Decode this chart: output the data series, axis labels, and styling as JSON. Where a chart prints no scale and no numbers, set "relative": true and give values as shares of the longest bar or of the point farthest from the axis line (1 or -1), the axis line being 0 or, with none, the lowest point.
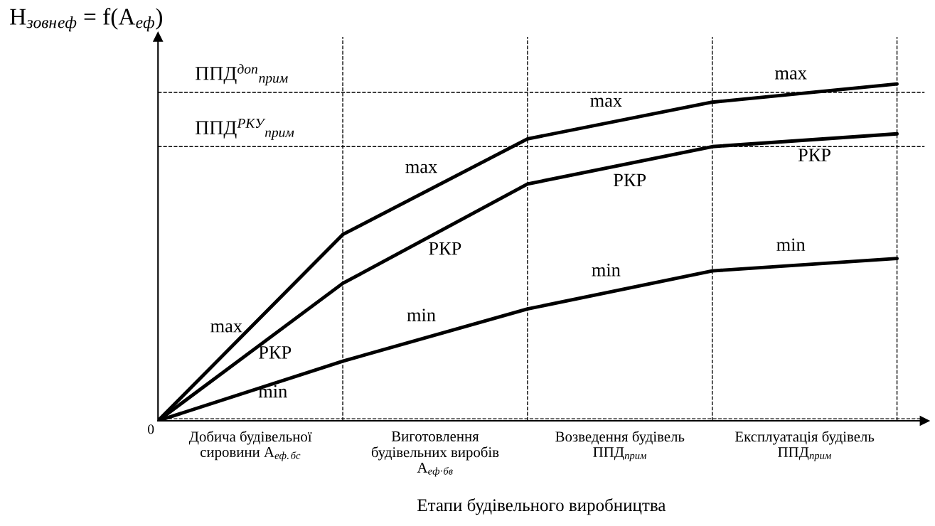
{
  "chart_data": {
    "type": "line",
    "relative": true,
    "ylabel": "H$_{зовн}$$_{еф}$ = f(A$_{еф}$)",
    "xlabel": "Етапи будівельного виробництва",
    "categories": [
      null,
      null,
      null,
      null,
      null
    ],
    "series": [
      {
        "name": "max",
        "color": "#000000",
        "values": [
          0,
          0.553,
          0.837,
          0.946,
          1.0
        ]
      },
      {
        "name": "РКР",
        "color": "#000000",
        "values": [
          0,
          0.408,
          0.703,
          0.814,
          0.852
        ]
      },
      {
        "name": "min",
        "color": "#000000",
        "values": [
          0,
          0.177,
          0.332,
          0.445,
          0.482
        ]
      }
    ],
    "ref_lines": [
      {
        "axis": "y",
        "value": 0.975,
        "label": "ППД$^{доп}$$_{прим}$",
        "line_style": "dashed"
      },
      {
        "axis": "y",
        "value": 0.814,
        "label": "ППД$^{РКУ}$$_{прим}$",
        "line_style": "dashed"
      },
      {
        "axis": "y",
        "value": 0.006,
        "label": null,
        "line_style": "dashed"
      }
    ],
    "annotations": [
      "0",
      "Добича будівельної\nсировини A$_{еф.бс}$",
      "Виготовлення\nбудівельних виробів\nA$_{еф·бв}$",
      "Возведення будівель\nППД$_{прим}$",
      "Експлуатація будівель\nППД$_{прим}$"
    ],
    "legend": false,
    "grid": "x",
    "marker": "none",
    "line_style": "solid"
  }
}
